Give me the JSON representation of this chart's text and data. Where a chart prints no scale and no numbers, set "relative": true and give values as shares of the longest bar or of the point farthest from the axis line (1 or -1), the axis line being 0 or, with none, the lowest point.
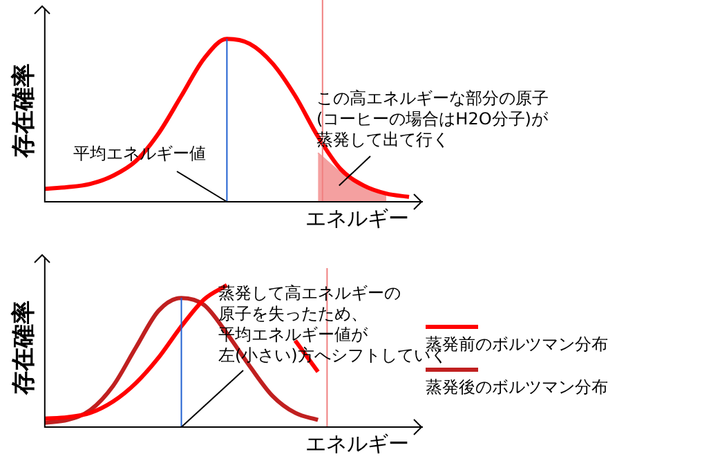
{
  "chart_data": [
    {
      "type": "line",
      "relative": true,
      "ylabel": "存在確率",
      "xlabel": "エネルギー",
      "tick_labels": false,
      "legend": false,
      "marker": "none",
      "categories": [
        null,
        null,
        null,
        null,
        null,
        null,
        null,
        null,
        null,
        null,
        null,
        null,
        null,
        null,
        null,
        null,
        null
      ],
      "series": [
        {
          "color": "#ff0000",
          "values": [
            0.08,
            0.09,
            0.11,
            0.16,
            0.25,
            0.42,
            0.65,
            0.88,
            1,
            0.97,
            0.85,
            0.65,
            0.4,
            0.2,
            0.1,
            0.05,
            0.03
          ]
        },
        {
          "type": "area",
          "color": "#f4a0a0",
          "values": [
            null,
            null,
            null,
            null,
            null,
            null,
            null,
            null,
            null,
            null,
            null,
            null,
            0.3,
            0.18,
            0.1,
            0.05,
            null
          ]
        }
      ],
      "annotations": [
        "平均エネルギー値",
        "この高エネルギーな部分の原子(コーヒーの場合はH2O分子)が蒸発して出て行く"
      ]
    },
    {
      "type": "line",
      "relative": true,
      "ylabel": "存在確率",
      "xlabel": "エネルギー",
      "tick_labels": false,
      "legend": "right",
      "marker": "none",
      "categories": [
        null,
        null,
        null,
        null,
        null,
        null,
        null,
        null,
        null,
        null,
        null,
        null,
        null,
        null,
        null,
        null,
        null
      ],
      "series": [
        {
          "name": "蒸発前のボルツマン分布",
          "color": "#ff0000",
          "values": [
            0.06,
            0.07,
            0.1,
            0.18,
            0.31,
            0.49,
            0.71,
            0.9,
            1,
            null,
            null,
            0.61,
            0.39,
            null,
            null,
            null,
            null
          ]
        },
        {
          "name": "蒸発後のボルツマン分布",
          "color": "#c02020",
          "values": [
            0.03,
            0.05,
            0.12,
            0.29,
            0.56,
            0.82,
            0.91,
            0.86,
            0.66,
            0.43,
            0.22,
            0.1,
            0.05,
            null,
            null,
            null,
            null
          ]
        }
      ],
      "annotations": [
        "蒸発して高エネルギーの",
        "原子を失ったため、",
        "平均エネルギー値が",
        "左(小さい)方へシフトしていく"
      ]
    }
  ]
}
